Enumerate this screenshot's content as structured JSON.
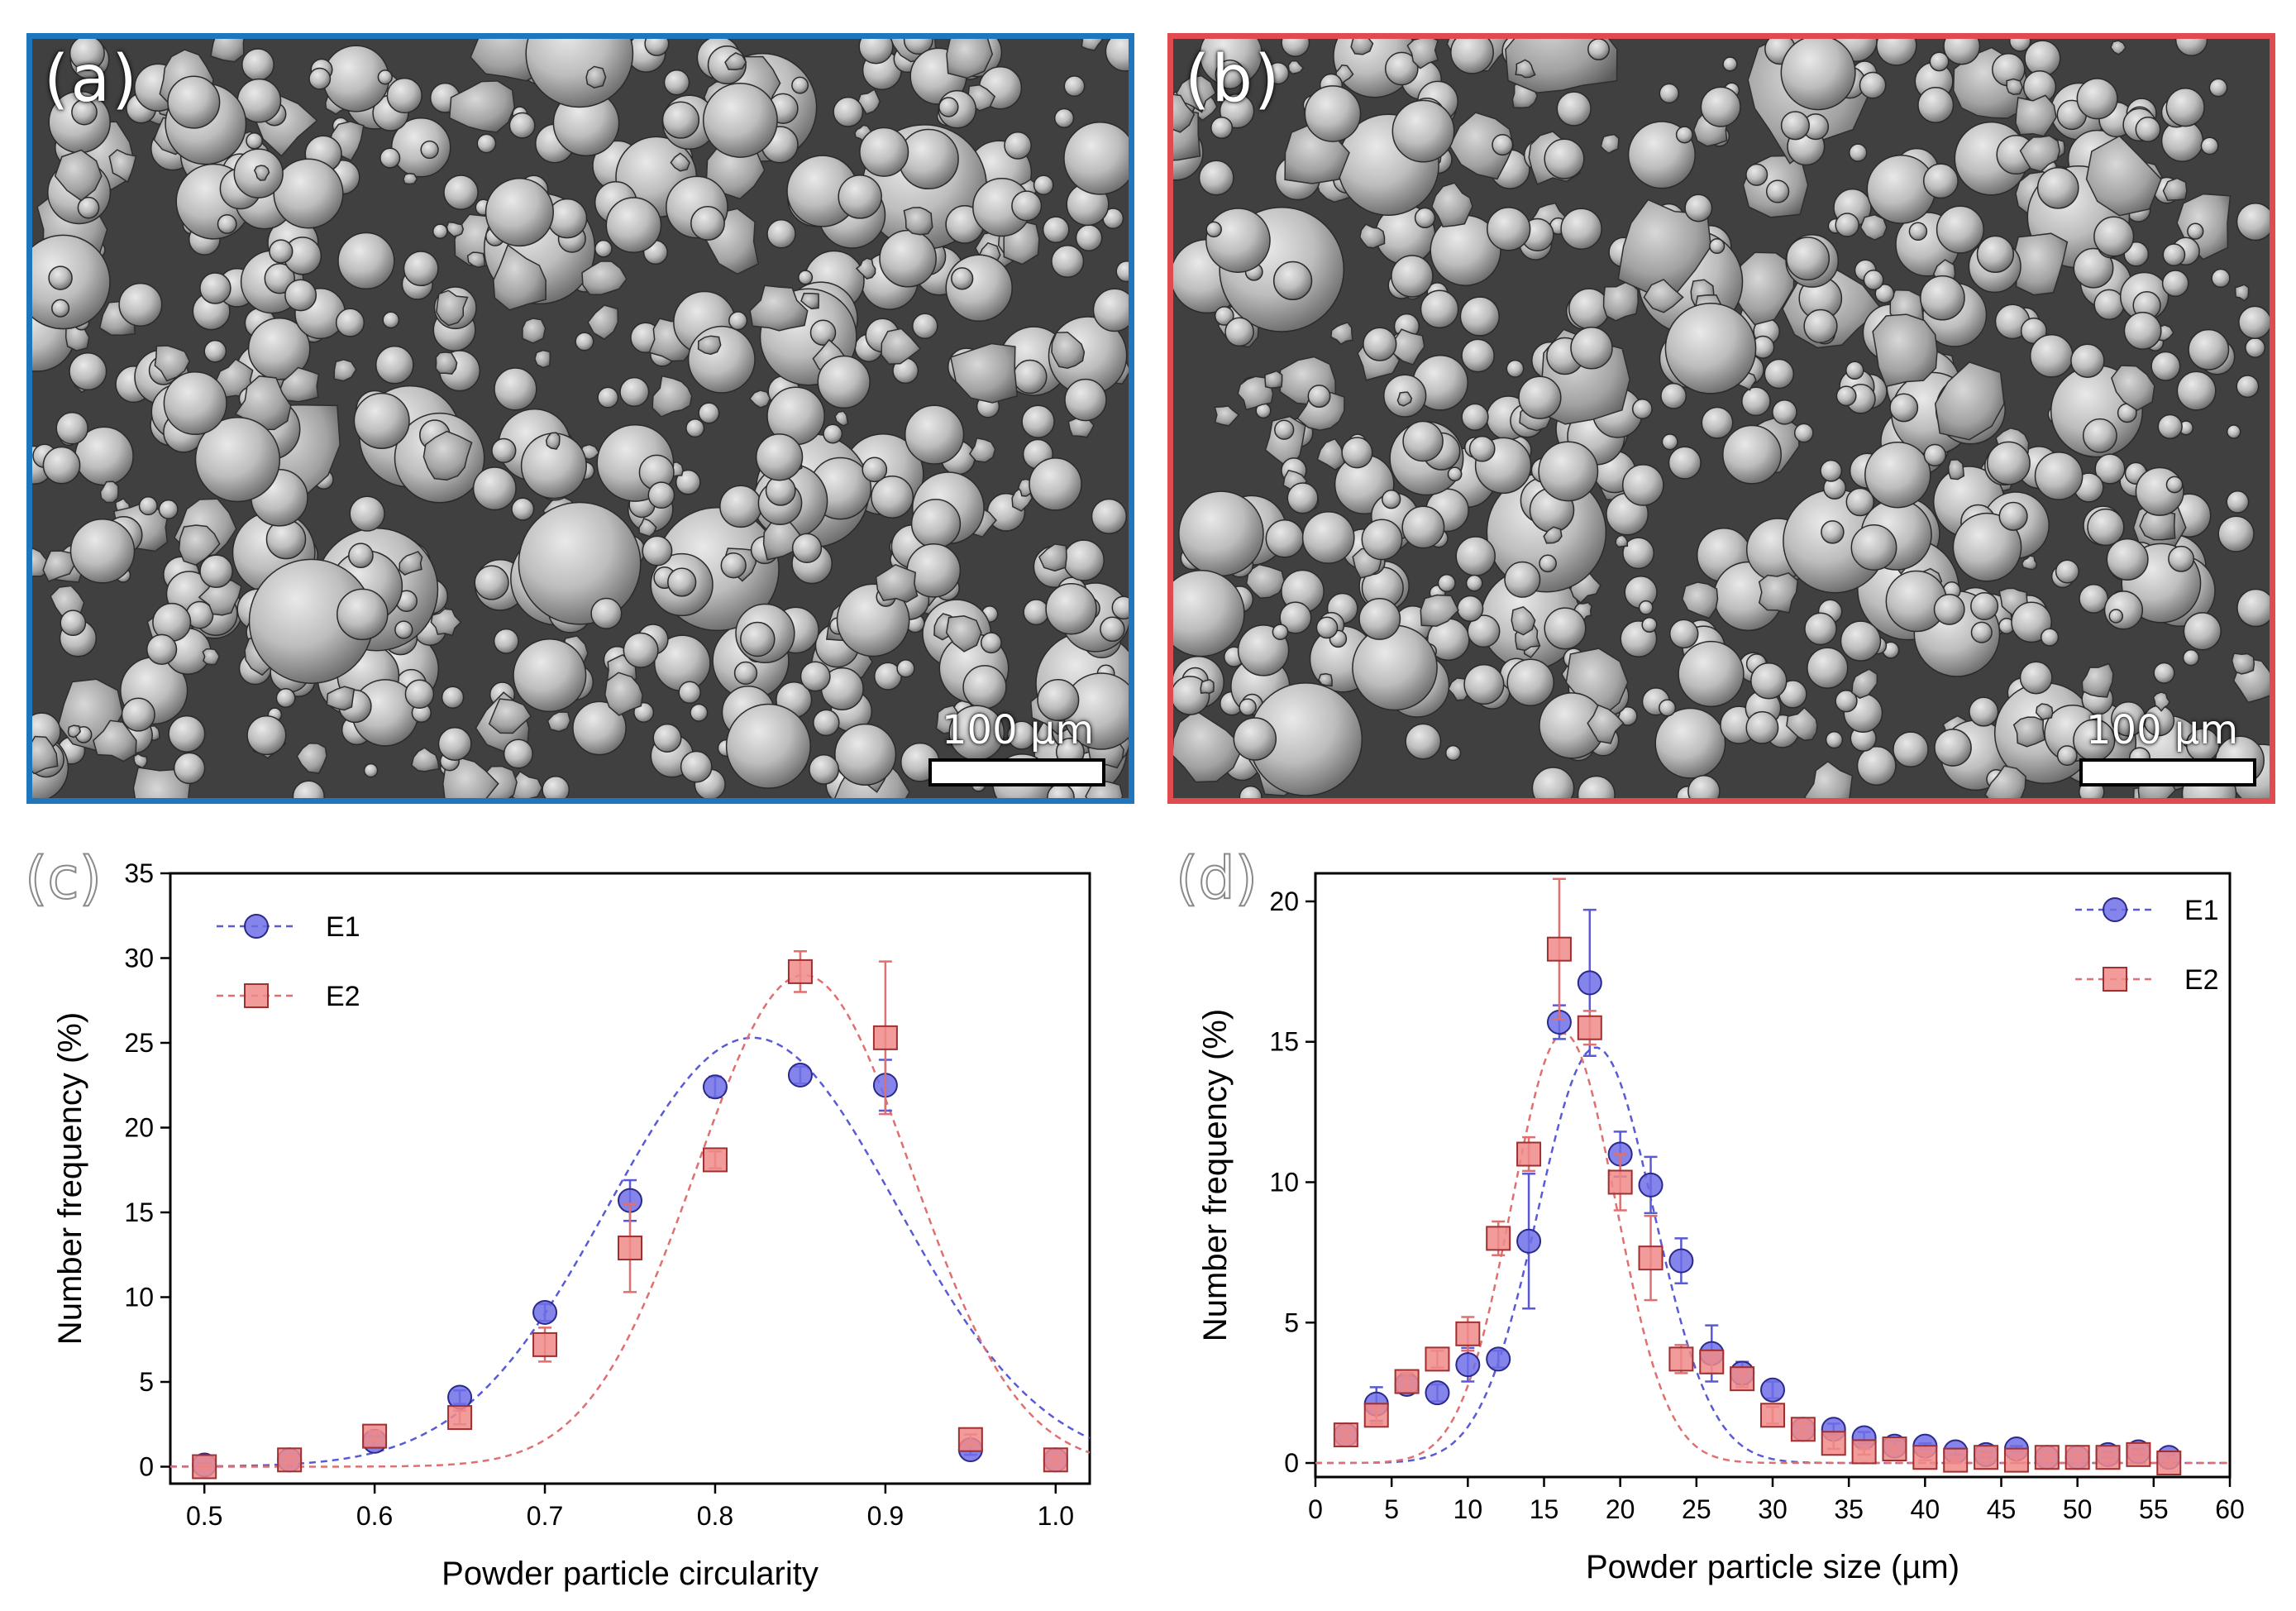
{
  "panels": {
    "a": {
      "label": "(a)",
      "scale_text": "100 µm",
      "border_color": "#1f76bd"
    },
    "b": {
      "label": "(b)",
      "scale_text": "100 µm",
      "border_color": "#e14a4e"
    },
    "c": {
      "label": "(c)"
    },
    "d": {
      "label": "(d)"
    }
  },
  "colors": {
    "E1": "#6f6fe8",
    "E2": "#f08a8a",
    "E1_line": "#5a5ad6",
    "E2_line": "#e07070"
  },
  "chart_data": [
    {
      "panel": "c",
      "type": "scatter",
      "xlabel": "Powder particle circularity",
      "ylabel": "Number frequency (%)",
      "xlim": [
        0.48,
        1.02
      ],
      "ylim": [
        -1,
        35
      ],
      "xticks": [
        "0.5",
        "0.6",
        "0.7",
        "0.8",
        "0.9",
        "1.0"
      ],
      "xtick_values": [
        0.5,
        0.6,
        0.7,
        0.8,
        0.9,
        1.0
      ],
      "yticks": [
        "0",
        "5",
        "10",
        "15",
        "20",
        "25",
        "30",
        "35"
      ],
      "ytick_values": [
        0,
        5,
        10,
        15,
        20,
        25,
        30,
        35
      ],
      "legend": "top-left",
      "series": [
        {
          "name": "E1",
          "marker": "circle",
          "x": [
            0.5,
            0.55,
            0.6,
            0.65,
            0.7,
            0.75,
            0.8,
            0.85,
            0.9,
            0.95,
            1.0
          ],
          "y": [
            0.1,
            0.4,
            1.5,
            4.1,
            9.1,
            15.7,
            22.4,
            23.1,
            22.5,
            1.0,
            0.4
          ],
          "err": [
            0.1,
            0.2,
            0.3,
            0.4,
            0.5,
            1.2,
            0.6,
            0.5,
            1.5,
            0.3,
            0.2
          ],
          "fit": {
            "a": 25.3,
            "mu": 0.822,
            "sigma": 0.085
          }
        },
        {
          "name": "E2",
          "marker": "square",
          "x": [
            0.5,
            0.55,
            0.6,
            0.65,
            0.7,
            0.75,
            0.8,
            0.85,
            0.9,
            0.95,
            1.0
          ],
          "y": [
            0.0,
            0.4,
            1.8,
            2.9,
            7.2,
            12.9,
            18.1,
            29.2,
            25.3,
            1.6,
            0.4
          ],
          "err": [
            0.1,
            0.2,
            0.3,
            0.4,
            1.0,
            2.6,
            0.5,
            1.2,
            4.5,
            0.3,
            0.2
          ],
          "fit": {
            "a": 29.0,
            "mu": 0.852,
            "sigma": 0.063
          }
        }
      ]
    },
    {
      "panel": "d",
      "type": "scatter",
      "xlabel": "Powder particle size (µm)",
      "ylabel": "Number frequency (%)",
      "xlim": [
        0,
        60
      ],
      "ylim": [
        -0.5,
        21
      ],
      "xticks": [
        "0",
        "5",
        "10",
        "15",
        "20",
        "25",
        "30",
        "35",
        "40",
        "45",
        "50",
        "55",
        "60"
      ],
      "xtick_values": [
        0,
        5,
        10,
        15,
        20,
        25,
        30,
        35,
        40,
        45,
        50,
        55,
        60
      ],
      "yticks": [
        "0",
        "5",
        "10",
        "15",
        "20"
      ],
      "ytick_values": [
        0,
        5,
        10,
        15,
        20
      ],
      "legend": "top-right",
      "series": [
        {
          "name": "E1",
          "marker": "circle",
          "x": [
            2,
            4,
            6,
            8,
            10,
            12,
            14,
            16,
            18,
            20,
            22,
            24,
            26,
            28,
            30,
            32,
            34,
            36,
            38,
            40,
            42,
            44,
            46,
            48,
            50,
            52,
            54,
            56
          ],
          "y": [
            1.0,
            2.1,
            2.8,
            2.5,
            3.5,
            3.7,
            7.9,
            15.7,
            17.1,
            11.0,
            9.9,
            7.2,
            3.9,
            3.2,
            2.6,
            1.2,
            1.2,
            0.9,
            0.6,
            0.6,
            0.4,
            0.3,
            0.5,
            0.2,
            0.2,
            0.3,
            0.4,
            0.2
          ],
          "err": [
            0.2,
            0.6,
            0.3,
            0.3,
            0.6,
            0.3,
            2.4,
            0.6,
            2.6,
            0.8,
            1.0,
            0.8,
            1.0,
            0.4,
            0.3,
            0.2,
            0.2,
            0.2,
            0.2,
            0.1,
            0.1,
            0.1,
            0.1,
            0.1,
            0.1,
            0.1,
            0.1,
            0.1
          ],
          "fit": {
            "a": 14.8,
            "mu": 18.4,
            "sigma": 3.8
          }
        },
        {
          "name": "E2",
          "marker": "square",
          "x": [
            2,
            4,
            6,
            8,
            10,
            12,
            14,
            16,
            18,
            20,
            22,
            24,
            26,
            28,
            30,
            32,
            34,
            36,
            38,
            40,
            42,
            44,
            46,
            48,
            50,
            52,
            54,
            56
          ],
          "y": [
            1.0,
            1.7,
            2.9,
            3.7,
            4.6,
            8.0,
            11.0,
            18.3,
            15.5,
            10.0,
            7.3,
            3.7,
            3.6,
            3.0,
            1.7,
            1.2,
            0.7,
            0.4,
            0.5,
            0.2,
            0.1,
            0.2,
            0.1,
            0.2,
            0.2,
            0.2,
            0.3,
            0.0
          ],
          "err": [
            0.2,
            0.3,
            0.3,
            0.3,
            0.6,
            0.6,
            0.6,
            2.5,
            0.6,
            1.0,
            1.5,
            0.5,
            0.4,
            0.3,
            0.3,
            0.2,
            0.2,
            0.1,
            0.1,
            0.1,
            0.1,
            0.1,
            0.1,
            0.1,
            0.1,
            0.1,
            0.1,
            0.1
          ],
          "fit": {
            "a": 15.3,
            "mu": 16.3,
            "sigma": 3.4
          }
        }
      ]
    }
  ]
}
